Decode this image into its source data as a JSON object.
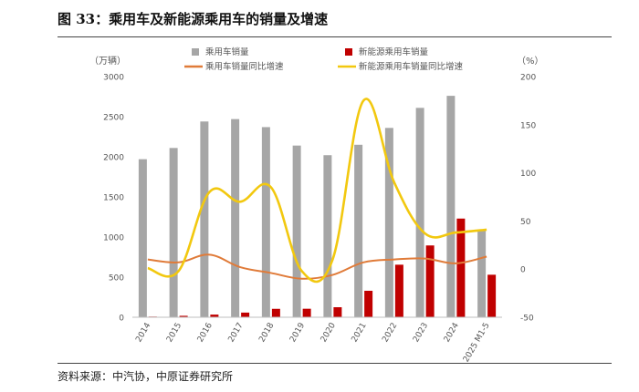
{
  "header": {
    "title": "图 33：乘用车及新能源乘用车的销量及增速"
  },
  "footer": {
    "source": "资料来源：中汽协，中原证券研究所"
  },
  "chart_data": {
    "type": "bar",
    "left_unit": "（万辆）",
    "right_unit": "（%）",
    "categories": [
      "2014",
      "2015",
      "2016",
      "2017",
      "2018",
      "2019",
      "2020",
      "2021",
      "2022",
      "2023",
      "2024",
      "2025 M1-5"
    ],
    "ylim_left": [
      0,
      3000
    ],
    "yticks_left": [
      0,
      500,
      1000,
      1500,
      2000,
      2500,
      3000
    ],
    "ylim_right": [
      -50,
      200
    ],
    "yticks_right": [
      -50,
      0,
      50,
      100,
      150,
      200
    ],
    "grid": false,
    "legend_placement": "top",
    "series": [
      {
        "name": "乘用车销量",
        "type": "bar",
        "axis": "left",
        "color": "#a6a6a6",
        "values": [
          1970,
          2110,
          2440,
          2470,
          2370,
          2140,
          2020,
          2150,
          2360,
          2610,
          2760,
          1090
        ]
      },
      {
        "name": "新能源乘用车销量",
        "type": "bar",
        "axis": "left",
        "color": "#c00000",
        "values": [
          8,
          18,
          33,
          58,
          105,
          106,
          125,
          330,
          655,
          895,
          1230,
          530
        ]
      },
      {
        "name": "乘用车销量同比增速",
        "type": "line",
        "axis": "right",
        "color": "#e07b39",
        "values": [
          10,
          7,
          15,
          2,
          -4,
          -10,
          -6,
          7,
          10,
          11,
          6,
          13
        ]
      },
      {
        "name": "新能源乘用车销量同比增速",
        "type": "line",
        "axis": "right",
        "color": "#f2c80f",
        "values": [
          1,
          -2,
          80,
          70,
          85,
          -2,
          10,
          175,
          90,
          37,
          38,
          41
        ]
      }
    ]
  }
}
